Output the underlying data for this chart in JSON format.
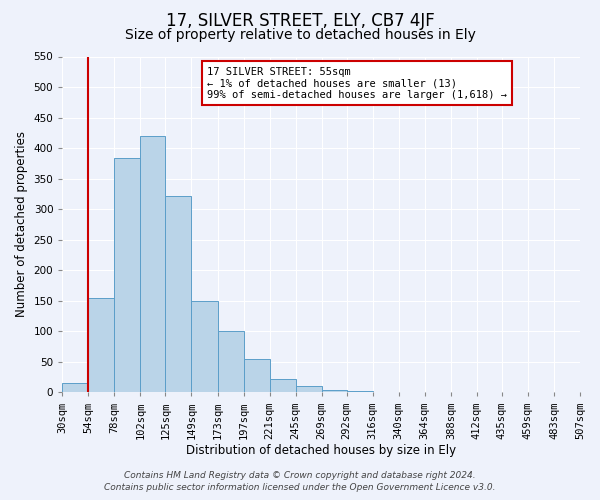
{
  "title": "17, SILVER STREET, ELY, CB7 4JF",
  "subtitle": "Size of property relative to detached houses in Ely",
  "xlabel": "Distribution of detached houses by size in Ely",
  "ylabel": "Number of detached properties",
  "bin_labels": [
    "30sqm",
    "54sqm",
    "78sqm",
    "102sqm",
    "125sqm",
    "149sqm",
    "173sqm",
    "197sqm",
    "221sqm",
    "245sqm",
    "269sqm",
    "292sqm",
    "316sqm",
    "340sqm",
    "364sqm",
    "388sqm",
    "412sqm",
    "435sqm",
    "459sqm",
    "483sqm",
    "507sqm"
  ],
  "bin_edges_vals": [
    30,
    54,
    78,
    102,
    125,
    149,
    173,
    197,
    221,
    245,
    269,
    292,
    316,
    340,
    364,
    388,
    412,
    435,
    459,
    483,
    507
  ],
  "bar_heights": [
    15,
    155,
    383,
    420,
    322,
    150,
    100,
    55,
    22,
    10,
    4,
    2,
    1,
    1,
    1,
    1,
    0,
    0,
    0,
    0
  ],
  "bar_color": "#bad4e8",
  "bar_edge_color": "#5b9ec9",
  "property_line_x": 54,
  "property_line_color": "#cc0000",
  "annotation_text": "17 SILVER STREET: 55sqm\n← 1% of detached houses are smaller (13)\n99% of semi-detached houses are larger (1,618) →",
  "annotation_box_color": "#ffffff",
  "annotation_box_edge_color": "#cc0000",
  "ylim": [
    0,
    550
  ],
  "yticks": [
    0,
    50,
    100,
    150,
    200,
    250,
    300,
    350,
    400,
    450,
    500,
    550
  ],
  "footer_line1": "Contains HM Land Registry data © Crown copyright and database right 2024.",
  "footer_line2": "Contains public sector information licensed under the Open Government Licence v3.0.",
  "background_color": "#eef2fb",
  "grid_color": "#ffffff",
  "title_fontsize": 12,
  "subtitle_fontsize": 10,
  "axis_label_fontsize": 8.5,
  "tick_fontsize": 7.5,
  "annotation_fontsize": 7.5,
  "footer_fontsize": 6.5
}
